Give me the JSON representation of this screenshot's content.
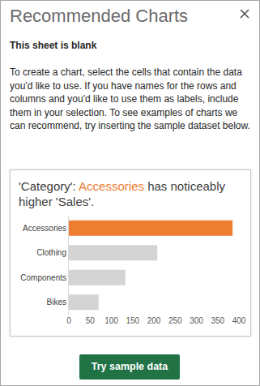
{
  "panel": {
    "header": "Recommended Charts",
    "subtitle": "This sheet is blank",
    "paragraph": "To create a chart, select the cells that contain the data you'd like to use. If you have names for the rows and columns and you'd like to use them as labels, include them in your selection. To see examples of charts we can recommend, try inserting the sample dataset below.",
    "button": "Try sample data"
  },
  "chart_data": {
    "type": "bar",
    "orientation": "horizontal",
    "title_parts": [
      {
        "text": "'Category': "
      },
      {
        "text": "Accessories",
        "color": "#ed7d31"
      },
      {
        "text": " has noticeably higher 'Sales'."
      }
    ],
    "categories": [
      "Accessories",
      "Clothing",
      "Components",
      "Bikes"
    ],
    "values": [
      385,
      208,
      133,
      70
    ],
    "colors": [
      "#ed7d31",
      "#d4d4d4",
      "#d4d4d4",
      "#d4d4d4"
    ],
    "xlim": [
      0,
      400
    ],
    "xticks": [
      0,
      50,
      100,
      150,
      200,
      250,
      300,
      350,
      400
    ],
    "grid": false
  }
}
